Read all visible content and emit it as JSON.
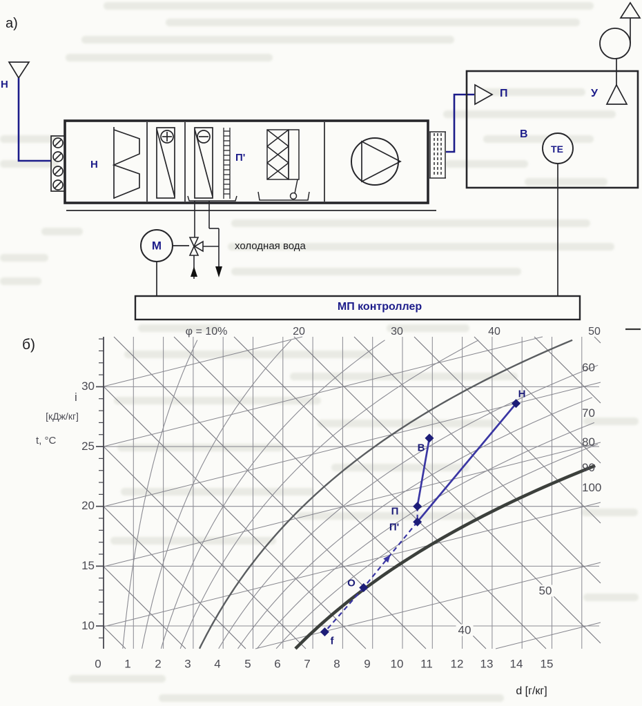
{
  "figure": {
    "part_a_label": "а)",
    "part_b_label": "б)"
  },
  "schematic": {
    "outdoor_air_label": "Н",
    "unit_inlet_label": "Н",
    "after_cooler_label": "П'",
    "valve_actuator_label": "М",
    "cold_water_label": "холодная вода",
    "controller_label": "МП контроллер",
    "supply_diffuser_label": "П",
    "room_air_label": "В",
    "temp_sensor_label": "ТЕ",
    "exhaust_label": "У"
  },
  "chart_data": {
    "type": "line",
    "subtype": "psychrometric i-d (Mollier) diagram with air conditioning process",
    "x_axis": {
      "label": "d [г/кг]",
      "min": 0,
      "max": 15,
      "ticks": [
        "0",
        "1",
        "2",
        "3",
        "4",
        "5",
        "6",
        "7",
        "8",
        "9",
        "10",
        "11",
        "12",
        "13",
        "14",
        "15"
      ]
    },
    "y_axis": {
      "unit_labels": [
        "i",
        "[кДж/кг]",
        "t, °C"
      ],
      "ticks": [
        "30",
        "25",
        "20",
        "15",
        "10"
      ],
      "tick_values": [
        30,
        25,
        20,
        15,
        10
      ]
    },
    "humidity_labels_top": [
      "φ = 10%",
      "20",
      "30",
      "40",
      "50"
    ],
    "humidity_labels_right": [
      "60",
      "70",
      "80",
      "90",
      "100"
    ],
    "humidity_curves_percent": [
      10,
      20,
      30,
      40,
      50,
      60,
      70,
      80,
      90,
      100
    ],
    "enthalpy_line_labels": [
      "40",
      "50"
    ],
    "grid": true,
    "points": [
      {
        "name": "Н",
        "d": 13.8,
        "t": 28.6
      },
      {
        "name": "В",
        "d": 10.9,
        "t": 25.7
      },
      {
        "name": "П",
        "d": 10.5,
        "t": 20.0
      },
      {
        "name": "П'",
        "d": 10.5,
        "t": 18.7
      },
      {
        "name": "О",
        "d": 8.7,
        "t": 13.2
      },
      {
        "name": "f",
        "d": 7.4,
        "t": 9.5
      }
    ],
    "process_lines": [
      {
        "from": "Н",
        "to": "П'",
        "style": "solid"
      },
      {
        "from": "В",
        "to": "П",
        "style": "solid"
      },
      {
        "from": "П",
        "to": "П'",
        "style": "dashed"
      },
      {
        "from": "П'",
        "to": "О",
        "style": "dashed-arrow"
      },
      {
        "from": "О",
        "to": "f",
        "style": "dashed"
      }
    ]
  }
}
